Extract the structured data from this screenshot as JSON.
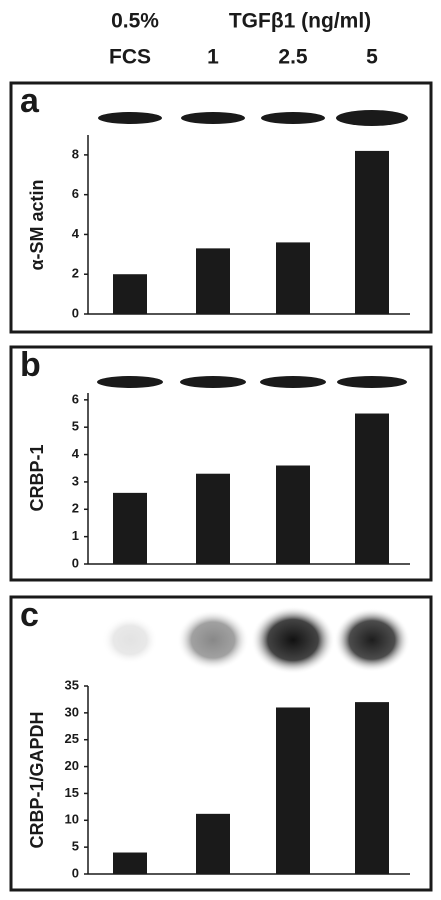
{
  "header": {
    "label_top": "0.5%",
    "group_label": "TGFβ1 (ng/ml)",
    "categories": [
      "FCS",
      "1",
      "2.5",
      "5"
    ]
  },
  "chart_data": [
    {
      "type": "bar",
      "panel": "a",
      "y_label": "α-SM actin",
      "values": [
        2.0,
        3.3,
        3.6,
        8.2
      ],
      "color": "#1a1a1a",
      "ylim": [
        0,
        9
      ],
      "yticks": [
        0,
        2,
        4,
        6,
        8
      ]
    },
    {
      "type": "bar",
      "panel": "b",
      "y_label": "CRBP-1",
      "values": [
        2.6,
        3.3,
        3.6,
        5.5
      ],
      "color": "#1a1a1a",
      "ylim": [
        0,
        6.25
      ],
      "yticks": [
        0,
        1,
        2,
        3,
        4,
        5,
        6
      ]
    },
    {
      "type": "bar",
      "panel": "c",
      "y_label": "CRBP-1/GAPDH",
      "values": [
        4,
        11.2,
        31,
        32
      ],
      "color": "#1a1a1a",
      "ylim": [
        0,
        35
      ],
      "yticks": [
        0,
        5,
        10,
        15,
        20,
        25,
        30,
        35
      ]
    }
  ]
}
